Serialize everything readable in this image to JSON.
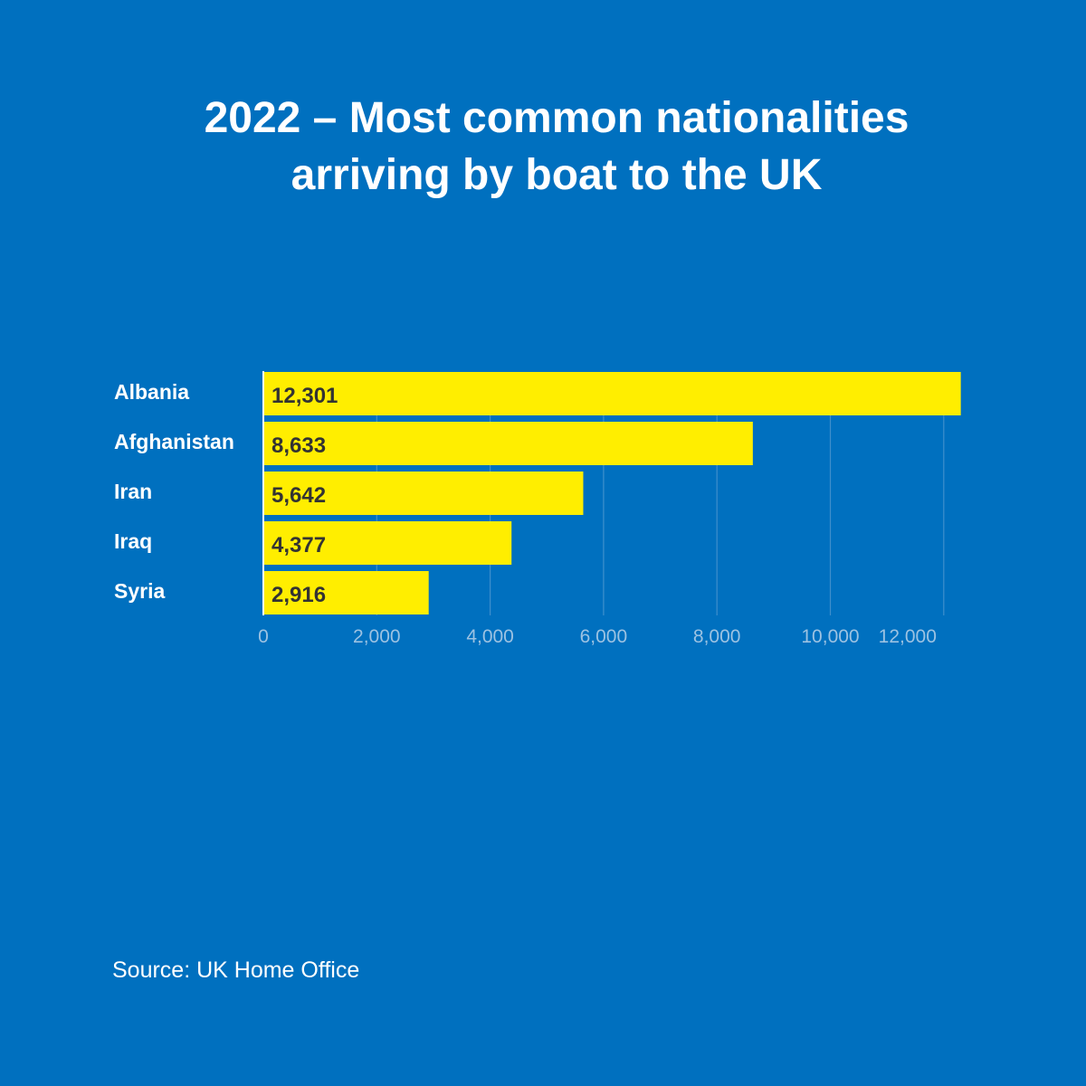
{
  "title": {
    "line1": "2022 – Most common nationalities",
    "line2": "arriving by boat to the UK"
  },
  "source": "Source: UK Home Office",
  "colors": {
    "background": "#0070bf",
    "bar": "#ffee00",
    "bar_label": "#333333",
    "category_label": "#ffffff",
    "tick_label": "#9cc2e2",
    "gridline": "#3f8fcc"
  },
  "chart_data": {
    "type": "bar",
    "orientation": "horizontal",
    "categories": [
      "Albania",
      "Afghanistan",
      "Iran",
      "Iraq",
      "Syria"
    ],
    "values": [
      12301,
      8633,
      5642,
      4377,
      2916
    ],
    "value_labels": [
      "12,301",
      "8,633",
      "5,642",
      "4,377",
      "2,916"
    ],
    "title": "2022 – Most common nationalities arriving by boat to the UK",
    "xlabel": "",
    "ylabel": "",
    "xlim": [
      0,
      12000
    ],
    "xticks": [
      0,
      2000,
      4000,
      6000,
      8000,
      10000,
      12000
    ],
    "xtick_labels": [
      "0",
      "2,000",
      "4,000",
      "6,000",
      "8,000",
      "10,000",
      "12,000"
    ],
    "grid": true,
    "legend": "none"
  }
}
